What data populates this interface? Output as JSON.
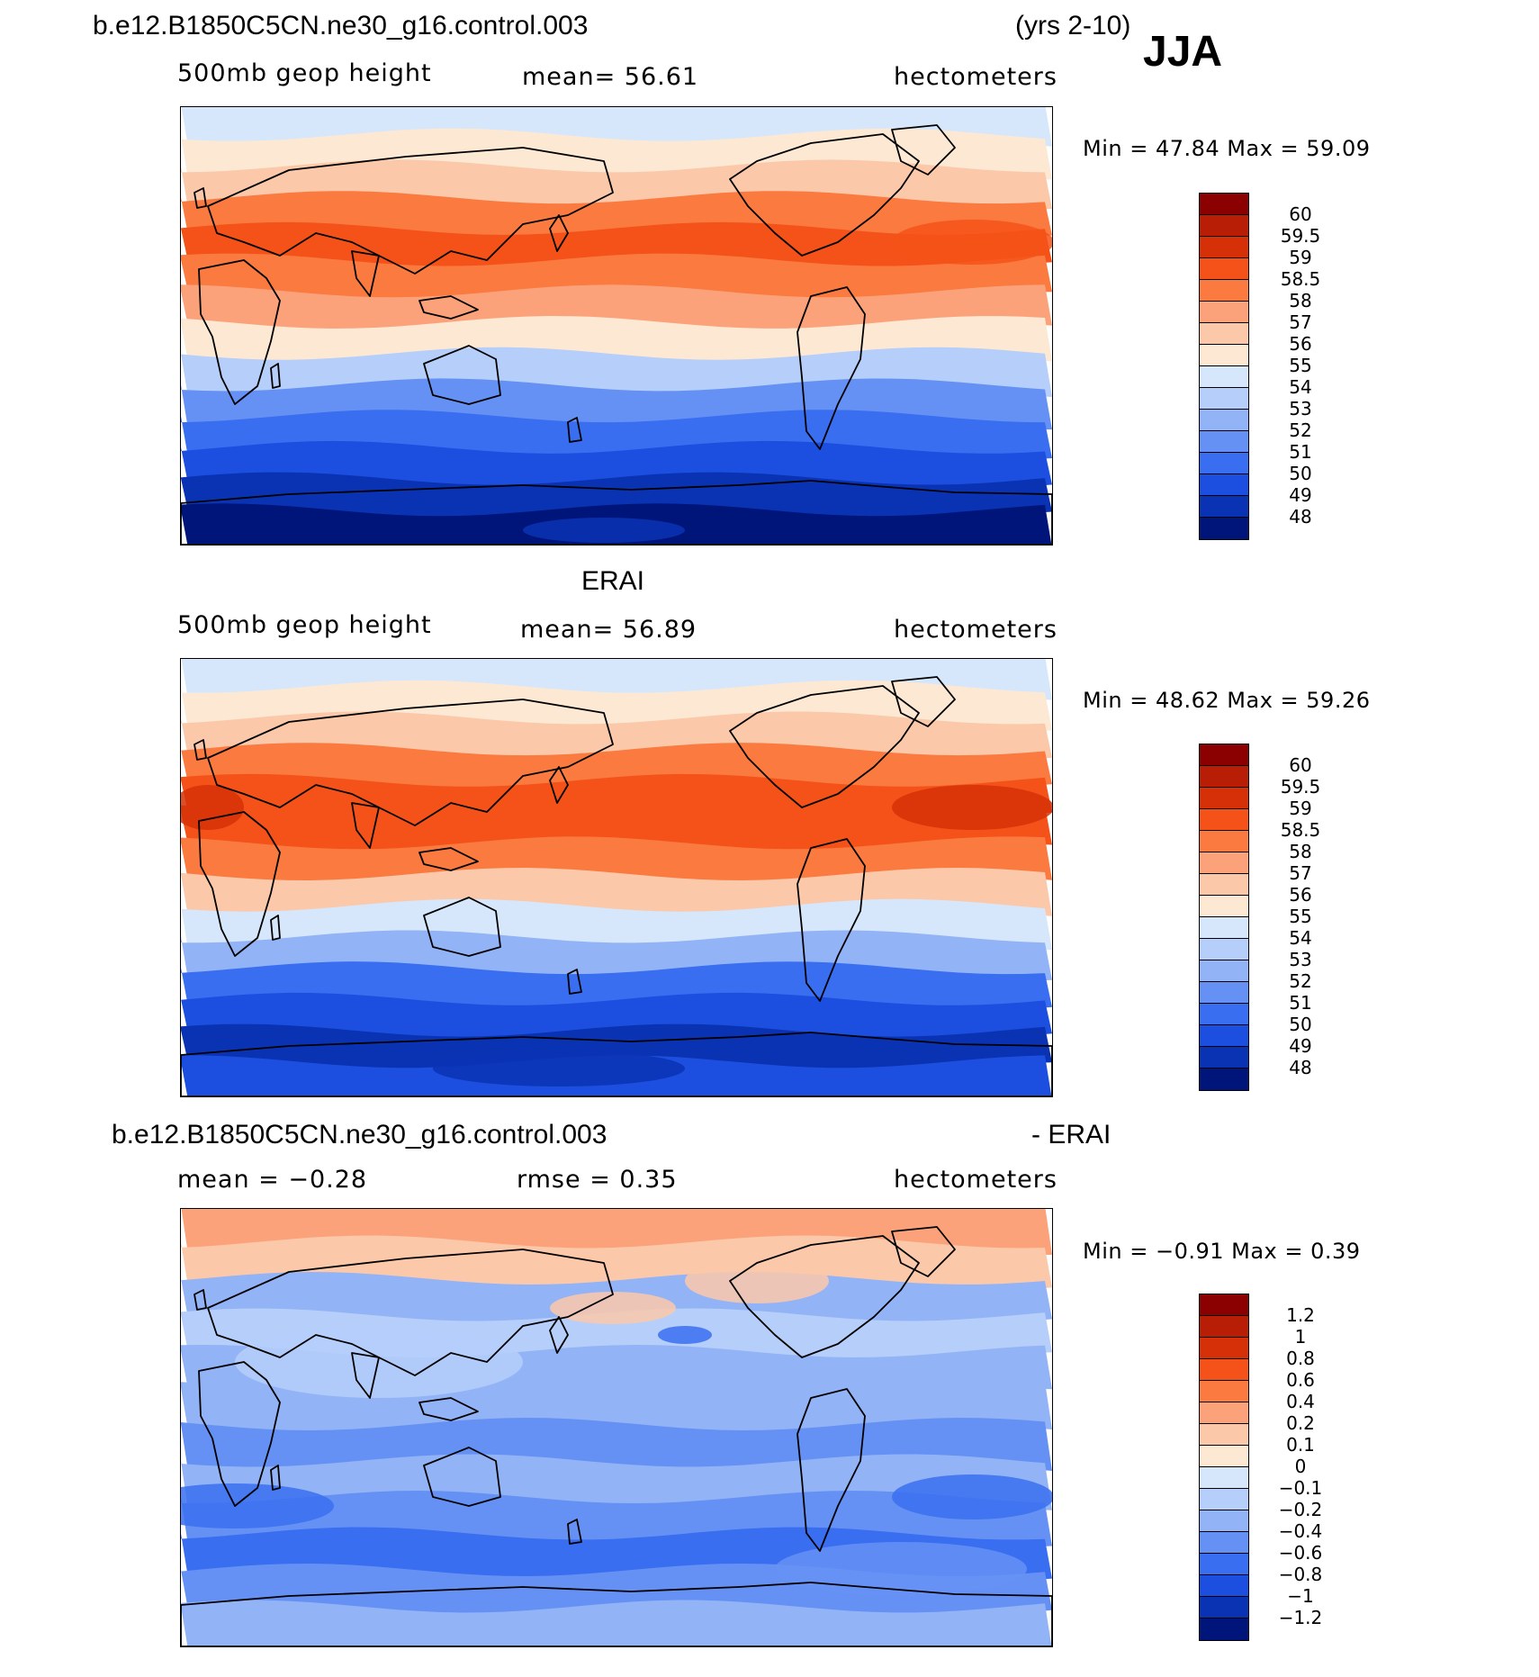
{
  "header": {
    "case_name": "b.e12.B1850C5CN.ne30_g16.control.003",
    "years": "(yrs 2-10)",
    "season": "JJA"
  },
  "panels": [
    {
      "id": "model",
      "title": "",
      "variable": "500mb geop height",
      "mean_text": "mean=  56.61",
      "units": "hectometers",
      "minmax_text": "Min =   47.84 Max =   59.09",
      "colorbar_colors": [
        "#8b0000",
        "#b81d05",
        "#d63008",
        "#f45218",
        "#fa7a40",
        "#fca27a",
        "#fcc8aa",
        "#fde8d4",
        "#d6e7fb",
        "#b5cefa",
        "#93b3f7",
        "#6691f4",
        "#3a6ef0",
        "#1c4fe0",
        "#0a33b4",
        "#00157a"
      ],
      "colorbar_labels": [
        "60",
        "59.5",
        "59",
        "58.5",
        "58",
        "57",
        "56",
        "55",
        "54",
        "53",
        "52",
        "51",
        "50",
        "49",
        "48"
      ]
    },
    {
      "id": "obs",
      "title": "ERAI",
      "variable": "500mb geop height",
      "mean_text": "mean=  56.89",
      "units": "hectometers",
      "minmax_text": "Min =   48.62 Max =   59.26",
      "colorbar_colors": [
        "#8b0000",
        "#b81d05",
        "#d63008",
        "#f45218",
        "#fa7a40",
        "#fca27a",
        "#fcc8aa",
        "#fde8d4",
        "#d6e7fb",
        "#b5cefa",
        "#93b3f7",
        "#6691f4",
        "#3a6ef0",
        "#1c4fe0",
        "#0a33b4",
        "#00157a"
      ],
      "colorbar_labels": [
        "60",
        "59.5",
        "59",
        "58.5",
        "58",
        "57",
        "56",
        "55",
        "54",
        "53",
        "52",
        "51",
        "50",
        "49",
        "48"
      ]
    },
    {
      "id": "diff",
      "title_left": "b.e12.B1850C5CN.ne30_g16.control.003",
      "title_right": "- ERAI",
      "mean_text": "mean =  −0.28",
      "rmse_text": "rmse =    0.35",
      "units": "hectometers",
      "minmax_text": "Min =   −0.91 Max =    0.39",
      "colorbar_colors": [
        "#8b0000",
        "#b81d05",
        "#d63008",
        "#f45218",
        "#fa7a40",
        "#fca27a",
        "#fcc8aa",
        "#fde8d4",
        "#d6e7fb",
        "#b5cefa",
        "#93b3f7",
        "#6691f4",
        "#3a6ef0",
        "#1c4fe0",
        "#0a33b4",
        "#00157a"
      ],
      "colorbar_labels": [
        "1.2",
        "1",
        "0.8",
        "0.6",
        "0.4",
        "0.2",
        "0.1",
        "0",
        "−0.1",
        "−0.2",
        "−0.4",
        "−0.6",
        "−0.8",
        "−1",
        "−1.2"
      ]
    }
  ],
  "colors": {
    "map_band_model": [
      "#d6e7fb",
      "#fde8d4",
      "#fcc8aa",
      "#fa7a40",
      "#f45218",
      "#fa7a40",
      "#fca27a",
      "#fde8d4",
      "#b5cefa",
      "#6691f4",
      "#3a6ef0",
      "#1c4fe0",
      "#0a33b4",
      "#00157a"
    ],
    "map_band_obs": [
      "#d6e7fb",
      "#fde8d4",
      "#fcc8aa",
      "#fa7a40",
      "#f45218",
      "#f45218",
      "#fa7a40",
      "#fcc8aa",
      "#d6e7fb",
      "#93b3f7",
      "#3a6ef0",
      "#1c4fe0",
      "#0a33b4",
      "#1c4fe0"
    ],
    "map_band_diff": [
      "#fca27a",
      "#fcc8aa",
      "#93b3f7",
      "#b5cefa",
      "#93b3f7",
      "#93b3f7",
      "#6691f4",
      "#93b3f7",
      "#6691f4",
      "#3a6ef0",
      "#6691f4",
      "#93b3f7"
    ]
  }
}
